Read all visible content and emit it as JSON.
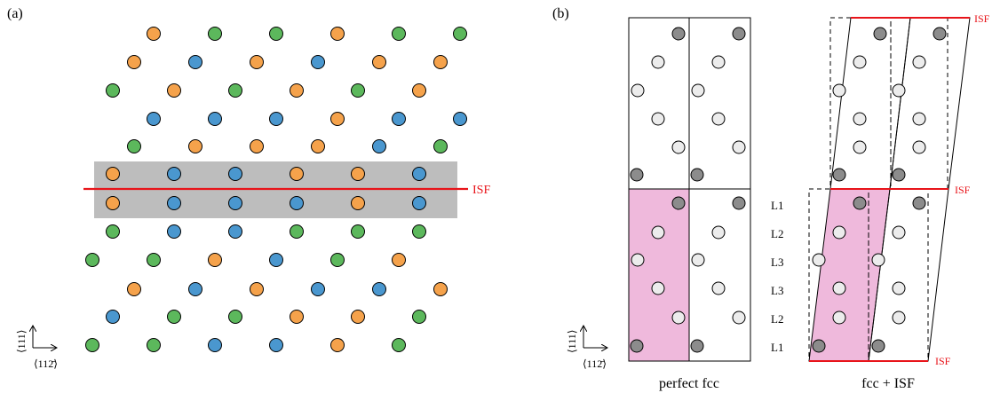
{
  "panel_a": {
    "label": "(a)",
    "isf_label": "ISF",
    "axis_vertical": "⟨111⟩",
    "axis_horizontal": "⟨112̄⟩",
    "rows": [
      [
        "orange",
        "green",
        "green",
        "orange",
        "green",
        "green"
      ],
      [
        "orange",
        "blue",
        "orange",
        "blue",
        "orange",
        "orange"
      ],
      [
        "green",
        "orange",
        "green",
        "orange",
        "green",
        "orange"
      ],
      [
        "blue",
        "blue",
        "blue",
        "orange",
        "blue",
        "blue"
      ],
      [
        "green",
        "orange",
        "orange",
        "orange",
        "blue",
        "green"
      ],
      [
        "orange",
        "blue",
        "blue",
        "orange",
        "orange",
        "blue"
      ],
      [
        "orange",
        "blue",
        "blue",
        "blue",
        "orange",
        "blue"
      ],
      [
        "green",
        "blue",
        "blue",
        "green",
        "green",
        "green"
      ],
      [
        "green",
        "green",
        "orange",
        "blue",
        "green",
        "orange"
      ],
      [
        "orange",
        "blue",
        "orange",
        "blue",
        "blue",
        "orange"
      ],
      [
        "blue",
        "green",
        "green",
        "orange",
        "orange",
        "green"
      ],
      [
        "green",
        "green",
        "blue",
        "blue",
        "orange",
        "green"
      ]
    ]
  },
  "panel_b": {
    "label": "(b)",
    "axis_vertical": "⟨111⟩",
    "axis_horizontal": "⟨112̄⟩",
    "caption_left": "perfect fcc",
    "caption_right": "fcc + ISF",
    "isf_top": "ISF",
    "isf_middle": "ISF",
    "isf_bottom": "ISF",
    "layer_labels": [
      "L1",
      "L2",
      "L3",
      "L3",
      "L2",
      "L1"
    ]
  },
  "colors": {
    "orange": "#f5a24b",
    "green": "#5cb85c",
    "blue": "#4a97cf",
    "isf": "#e8141a",
    "band": "#bdbdbd",
    "pink": "#efb9dc",
    "atom_light": "#ececec",
    "atom_dark": "#8c8c8c"
  }
}
